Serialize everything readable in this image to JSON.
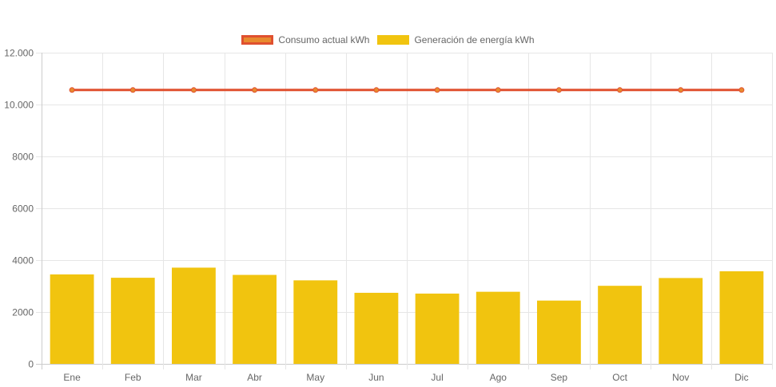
{
  "chart_data": {
    "type": "bar",
    "categories": [
      "Ene",
      "Feb",
      "Mar",
      "Abr",
      "May",
      "Jun",
      "Jul",
      "Ago",
      "Sep",
      "Oct",
      "Nov",
      "Dic"
    ],
    "series": [
      {
        "name": "Consumo actual kWh",
        "type": "line",
        "color": "#e0502f",
        "point_color": "#e88a2f",
        "values": [
          10560,
          10560,
          10560,
          10560,
          10560,
          10560,
          10560,
          10560,
          10560,
          10560,
          10560,
          10560
        ]
      },
      {
        "name": "Generación de energía kWh",
        "type": "bar",
        "color": "#f1c40f",
        "values": [
          3450,
          3320,
          3710,
          3430,
          3220,
          2740,
          2710,
          2780,
          2440,
          3010,
          3310,
          3570
        ]
      }
    ],
    "title": "",
    "xlabel": "",
    "ylabel": "",
    "ylim": [
      0,
      12000
    ],
    "yticks": [
      0,
      2000,
      4000,
      6000,
      8000,
      10000,
      12000
    ],
    "ytick_labels": [
      "0",
      "2000",
      "4000",
      "6000",
      "8000",
      "10.000",
      "12.000"
    ],
    "grid": true,
    "legend_position": "top"
  }
}
